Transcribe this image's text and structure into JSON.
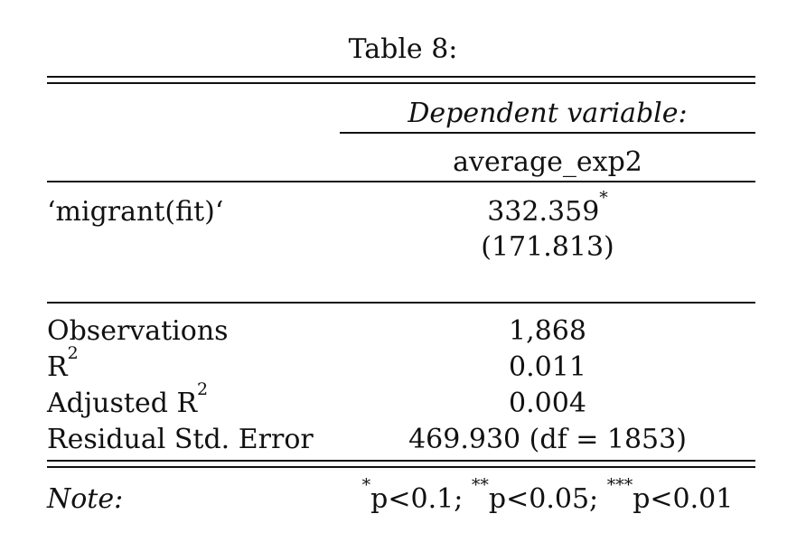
{
  "caption": "Table 8:",
  "header": {
    "dependent_variable_label": "Dependent variable:",
    "model_name": "average_exp2"
  },
  "coefficients": [
    {
      "name": "‘migrant(fit)‘",
      "estimate": "332.359",
      "stars": "*",
      "std_error": "(171.813)"
    }
  ],
  "stats": {
    "observations": {
      "label": "Observations",
      "value": "1,868"
    },
    "r2": {
      "label": "R",
      "sup": "2",
      "value": "0.011"
    },
    "adj_r2": {
      "label": "Adjusted R",
      "sup": "2",
      "value": "0.004"
    },
    "resid_se": {
      "label": "Residual Std. Error",
      "value": "469.930 (df = 1853)"
    }
  },
  "note": {
    "label": "Note:",
    "levels": [
      {
        "stars": "*",
        "text": "p<0.1;"
      },
      {
        "stars": "**",
        "text": "p<0.05;"
      },
      {
        "stars": "***",
        "text": "p<0.01"
      }
    ]
  }
}
